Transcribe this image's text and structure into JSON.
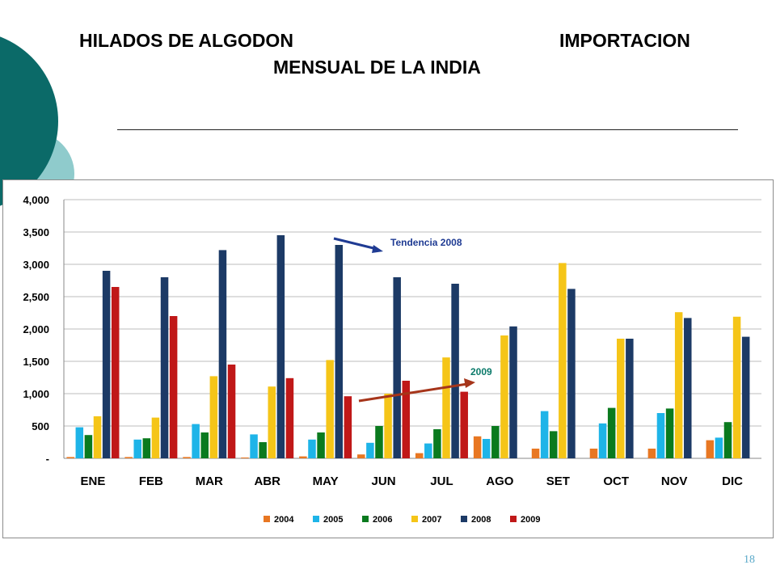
{
  "slide": {
    "title_part1": "HILADOS DE ALGODON",
    "title_part2": "IMPORTACION",
    "title_line2": "MENSUAL DE LA INDIA",
    "page_number": "18"
  },
  "colors": {
    "deco_dark": "#0b6a68",
    "deco_light": "#8fcbcc",
    "annotation_blue": "#1f3b93",
    "annotation_red": "#a6351a"
  },
  "chart_data": {
    "type": "bar",
    "categories": [
      "ENE",
      "FEB",
      "MAR",
      "ABR",
      "MAY",
      "JUN",
      "JUL",
      "AGO",
      "SET",
      "OCT",
      "NOV",
      "DIC"
    ],
    "ylim": [
      0,
      4000
    ],
    "yticks": [
      0,
      500,
      1000,
      1500,
      2000,
      2500,
      3000,
      3500,
      4000
    ],
    "ytick_labels": [
      "-",
      "500",
      "1,000",
      "1,500",
      "2,000",
      "2,500",
      "3,000",
      "3,500",
      "4,000"
    ],
    "grid": true,
    "legend_position": "bottom",
    "series": [
      {
        "name": "2004",
        "color": "#e87722",
        "values": [
          20,
          20,
          20,
          0,
          30,
          60,
          80,
          340,
          150,
          150,
          150,
          280
        ]
      },
      {
        "name": "2005",
        "color": "#1eb4e8",
        "values": [
          480,
          290,
          530,
          370,
          290,
          240,
          230,
          300,
          730,
          540,
          700,
          320
        ]
      },
      {
        "name": "2006",
        "color": "#0a7a1e",
        "values": [
          360,
          310,
          400,
          250,
          400,
          500,
          450,
          500,
          420,
          780,
          770,
          560
        ]
      },
      {
        "name": "2007",
        "color": "#f5c518",
        "values": [
          650,
          630,
          1270,
          1110,
          1520,
          1000,
          1560,
          1900,
          3020,
          1850,
          2260,
          2190
        ]
      },
      {
        "name": "2008",
        "color": "#1c3a66",
        "values": [
          2900,
          2800,
          3220,
          3450,
          3300,
          2800,
          2700,
          2040,
          2620,
          1850,
          2170,
          1880
        ]
      },
      {
        "name": "2009",
        "color": "#c01818",
        "values": [
          2650,
          2200,
          1450,
          1240,
          960,
          1200,
          1030,
          null,
          null,
          null,
          null,
          null
        ]
      }
    ],
    "annotations": [
      {
        "text": "Tendencia 2008"
      },
      {
        "text": "2009"
      }
    ]
  }
}
